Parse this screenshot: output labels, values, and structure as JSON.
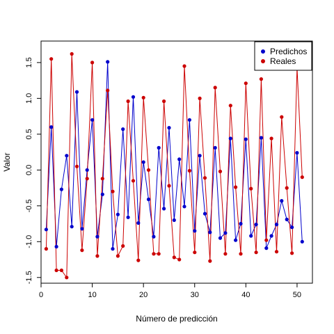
{
  "chart_data": {
    "type": "line",
    "xlabel": "Número de predicción",
    "ylabel": "Valor",
    "xlim": [
      0,
      53
    ],
    "ylim": [
      -1.58,
      1.8
    ],
    "x_ticks": [
      0,
      10,
      20,
      30,
      40,
      50
    ],
    "y_ticks": [
      -1.5,
      -1.0,
      -0.5,
      0.0,
      0.5,
      1.0,
      1.5
    ],
    "x_tick_labels": [
      "0",
      "10",
      "20",
      "30",
      "40",
      "50"
    ],
    "y_tick_labels": [
      "-1.5",
      "-1.0",
      "-0.5",
      "0.0",
      "0.5",
      "1.0",
      "1.5"
    ],
    "legend": {
      "position": "top-right",
      "box": true
    },
    "x": [
      1,
      2,
      3,
      4,
      5,
      6,
      7,
      8,
      9,
      10,
      11,
      12,
      13,
      14,
      15,
      16,
      17,
      18,
      19,
      20,
      21,
      22,
      23,
      24,
      25,
      26,
      27,
      28,
      29,
      30,
      31,
      32,
      33,
      34,
      35,
      36,
      37,
      38,
      39,
      40,
      41,
      42,
      43,
      44,
      45,
      46,
      47,
      48,
      49,
      50,
      51
    ],
    "series": [
      {
        "name": "Predichos",
        "color": "#0000cc",
        "values": [
          -0.83,
          0.6,
          -1.07,
          -0.27,
          0.2,
          -0.79,
          1.09,
          -0.82,
          0.0,
          0.7,
          -0.93,
          -0.34,
          1.51,
          -1.1,
          -0.62,
          0.57,
          -0.66,
          1.02,
          -0.74,
          0.11,
          -0.41,
          -0.93,
          0.31,
          -0.54,
          0.59,
          -0.7,
          0.15,
          -0.51,
          0.7,
          -0.85,
          0.2,
          -0.61,
          -0.87,
          0.31,
          -0.95,
          -0.88,
          0.44,
          -0.98,
          -0.75,
          0.43,
          -0.92,
          -0.76,
          0.45,
          -1.09,
          -0.92,
          -0.76,
          -0.43,
          -0.69,
          -0.8,
          0.24,
          -1.0
        ]
      },
      {
        "name": "Reales",
        "color": "#cc0000",
        "values": [
          -1.1,
          1.55,
          -1.4,
          -1.4,
          -1.5,
          1.62,
          0.05,
          -1.12,
          -0.12,
          1.5,
          -1.2,
          -0.12,
          1.11,
          -0.3,
          -1.2,
          -1.06,
          0.96,
          -0.15,
          -1.26,
          1.01,
          0.0,
          -1.17,
          -1.17,
          0.96,
          -0.22,
          -1.22,
          -1.25,
          1.45,
          -0.01,
          -1.15,
          1.0,
          -0.11,
          -1.27,
          1.15,
          -0.02,
          -1.17,
          0.9,
          -0.24,
          -1.17,
          1.21,
          -0.26,
          -1.15,
          1.27,
          -0.98,
          0.44,
          -1.14,
          0.74,
          -0.25,
          -1.16,
          1.43,
          -0.1
        ]
      }
    ]
  }
}
